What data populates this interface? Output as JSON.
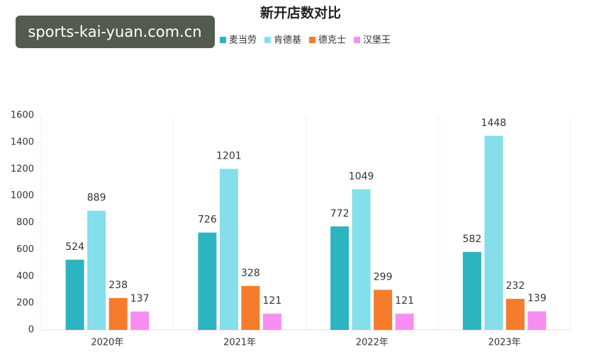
{
  "chart_data": {
    "type": "bar",
    "title": "新开店数对比",
    "watermark": "sports-kai-yuan.com.cn",
    "categories": [
      "2020年",
      "2021年",
      "2022年",
      "2023年"
    ],
    "series": [
      {
        "name": "麦当劳",
        "color": "#2cb4c0",
        "values": [
          524,
          726,
          772,
          582
        ]
      },
      {
        "name": "肯德基",
        "color": "#84dfea",
        "values": [
          889,
          1201,
          1049,
          1448
        ]
      },
      {
        "name": "德克士",
        "color": "#f47c2c",
        "values": [
          238,
          328,
          299,
          232
        ]
      },
      {
        "name": "汉堡王",
        "color": "#f78ff2",
        "values": [
          137,
          121,
          121,
          139
        ]
      }
    ],
    "ylim": [
      0,
      1600
    ],
    "yticks": [
      0,
      200,
      400,
      600,
      800,
      1000,
      1200,
      1400,
      1600
    ],
    "legend": "top"
  }
}
